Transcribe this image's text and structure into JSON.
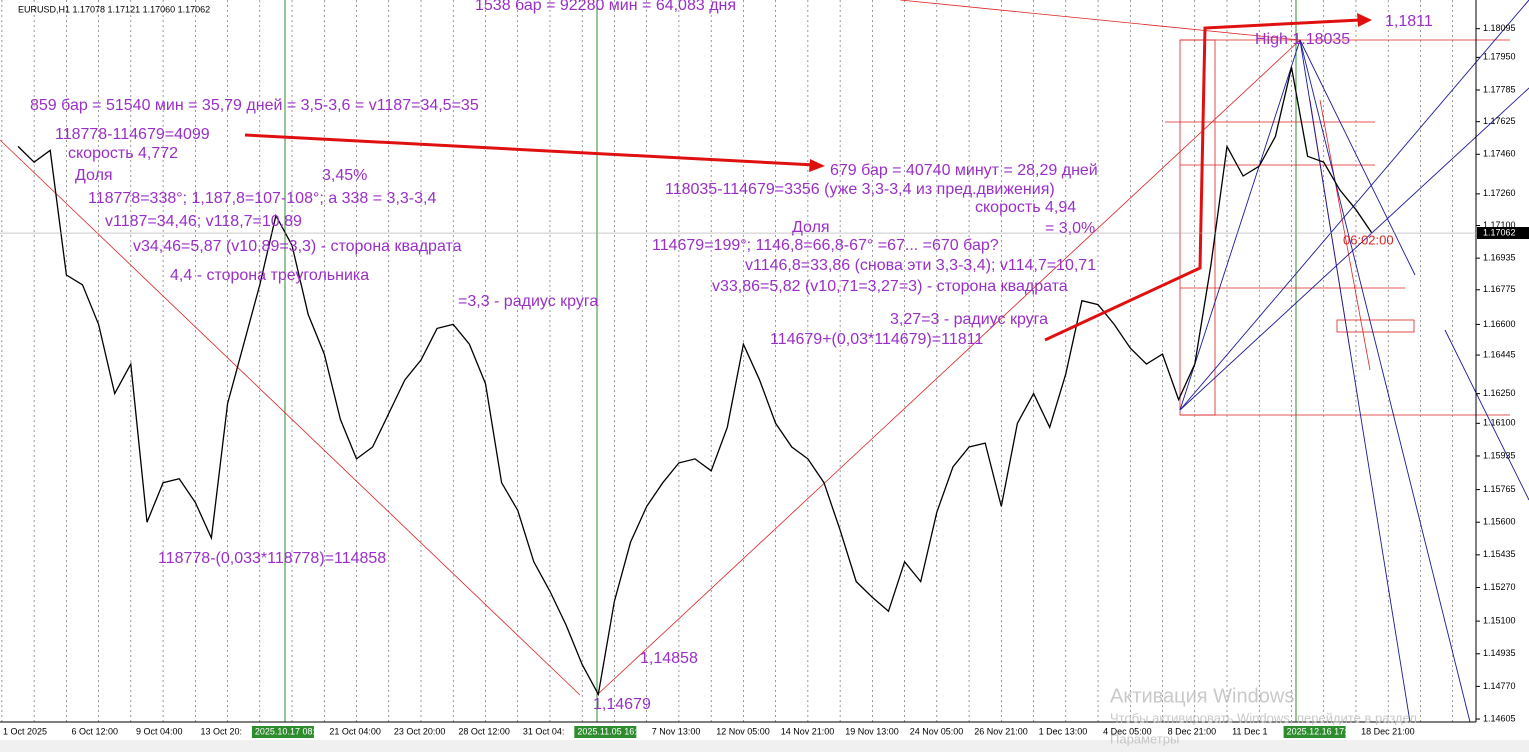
{
  "chart_data": {
    "type": "line",
    "symbol_info": "EURUSD,H1  1.17078 1.17121 1.17060 1.17062",
    "categories": [
      "1 Oct 2025",
      null,
      null,
      null,
      "6 Oct 12:00",
      null,
      null,
      null,
      "9 Oct 04:00",
      null,
      null,
      null,
      "13 Oct 20:",
      null,
      null,
      null,
      "2025.10.17 08:00",
      null,
      null,
      null,
      "21 Oct 04:00",
      null,
      null,
      null,
      "23 Oct 20:00",
      null,
      null,
      null,
      "28 Oct 12:00",
      null,
      null,
      null,
      "31 Oct 04:",
      null,
      null,
      null,
      "2025.11.05 16:00",
      null,
      null,
      null,
      "7 Nov 13:00",
      null,
      null,
      null,
      "12 Nov 05:00",
      null,
      null,
      null,
      "14 Nov 21:00",
      null,
      null,
      null,
      "19 Nov 13:00",
      null,
      null,
      null,
      "24 Nov 05:00",
      null,
      null,
      null,
      "26 Nov 21:00",
      null,
      null,
      null,
      "1 Dec 13:00",
      null,
      null,
      null,
      "4 Dec 05:00",
      null,
      null,
      null,
      "8 Dec 21:00",
      null,
      null,
      null,
      "11 Dec 1",
      null,
      null,
      null,
      "2025.12.16 17:00",
      null,
      null,
      null,
      "18 Dec 21:00"
    ],
    "values": [
      1.175,
      1.1742,
      1.1748,
      1.1685,
      1.168,
      1.166,
      1.1625,
      1.164,
      1.156,
      1.158,
      1.1582,
      1.157,
      1.1552,
      1.162,
      1.165,
      1.168,
      1.1715,
      1.17,
      1.1665,
      1.1645,
      1.1612,
      1.1592,
      1.1598,
      1.1615,
      1.1632,
      1.1642,
      1.1658,
      1.166,
      1.165,
      1.163,
      1.158,
      1.1566,
      1.154,
      1.1525,
      1.1508,
      1.1488,
      1.1473,
      1.152,
      1.155,
      1.1568,
      1.158,
      1.159,
      1.1592,
      1.1586,
      1.1608,
      1.165,
      1.1632,
      1.161,
      1.1598,
      1.1592,
      1.158,
      1.1556,
      1.153,
      1.1522,
      1.1515,
      1.154,
      1.153,
      1.1565,
      1.1588,
      1.1598,
      1.16,
      1.1568,
      1.161,
      1.1625,
      1.1608,
      1.1635,
      1.1672,
      1.167,
      1.166,
      1.1648,
      1.164,
      1.1645,
      1.1622,
      1.164,
      1.169,
      1.175,
      1.1735,
      1.174,
      1.1755,
      1.179,
      1.1745,
      1.1742,
      1.1728,
      1.1718,
      1.1706
    ],
    "color": "#000000",
    "ylim": [
      1.1459,
      1.1824
    ],
    "yticks": [
      1.18095,
      {
        "value": 1.1795,
        "label": "1.17950"
      },
      1.17785,
      1.17625,
      {
        "value": 1.1746,
        "label": "1.17460"
      },
      {
        "value": 1.1726,
        "label": "1.17260"
      },
      {
        "value": 1.171,
        "label": "1.17100"
      },
      1.16935,
      1.16775,
      {
        "value": 1.166,
        "label": "1.16600"
      },
      1.16445,
      {
        "value": 1.1625,
        "label": "1.16250"
      },
      {
        "value": 1.161,
        "label": "1.16100"
      },
      1.15935,
      1.15765,
      {
        "value": 1.156,
        "label": "1.15600"
      },
      1.15435,
      {
        "value": 1.1527,
        "label": "1.15270"
      },
      {
        "value": 1.151,
        "label": "1.15100"
      },
      1.14935,
      {
        "value": 1.1477,
        "label": "1.14770"
      },
      1.14605
    ],
    "last_price": 1.17062,
    "grid": false,
    "annotations": [
      "1538 бар = 92280 мин = 64,083 дня",
      "859 бар = 51540 мин = 35,79 дней = 3,5-3,6 = v1187=34,5=35",
      "118778-114679=4099",
      "скорость 4,772",
      "Доля",
      "3,45%",
      "118778=338°; 1,187,8=107-108°; а 338 = 3,3-3,4",
      "v1187=34,46; v118,7=10,89",
      "v34,46=5,87 (v10,89=3,3) - сторона квадрата",
      "4,4 - сторона треугольника",
      "=3,3 - радиус круга",
      "118778-(0,033*118778)=114858",
      "679 бар = 40740 минут = 28,29 дней",
      "118035-114679=3356 (уже 3,3-3,4 из пред.движения)",
      "скорость 4,94",
      "Доля",
      "= 3,0%",
      "114679=199°; 1146,8=66,8-67° =67... =670 бар?",
      "v1146,8=33,86 (снова эти 3,3-3,4); v114,7=10,71",
      "v33,86=5,82 (v10,71=3,27=3) - сторона квадрата",
      "3,27=3 - радиус круга",
      "114679+(0,03*114679)=11811",
      "1,1811",
      "High 1.18035",
      "1,14858",
      "1,14679",
      "06:02:00"
    ],
    "watermark": [
      "Активация Windows",
      "Чтобы активировать Windows, перейдите в раздел",
      "Параметры"
    ]
  }
}
